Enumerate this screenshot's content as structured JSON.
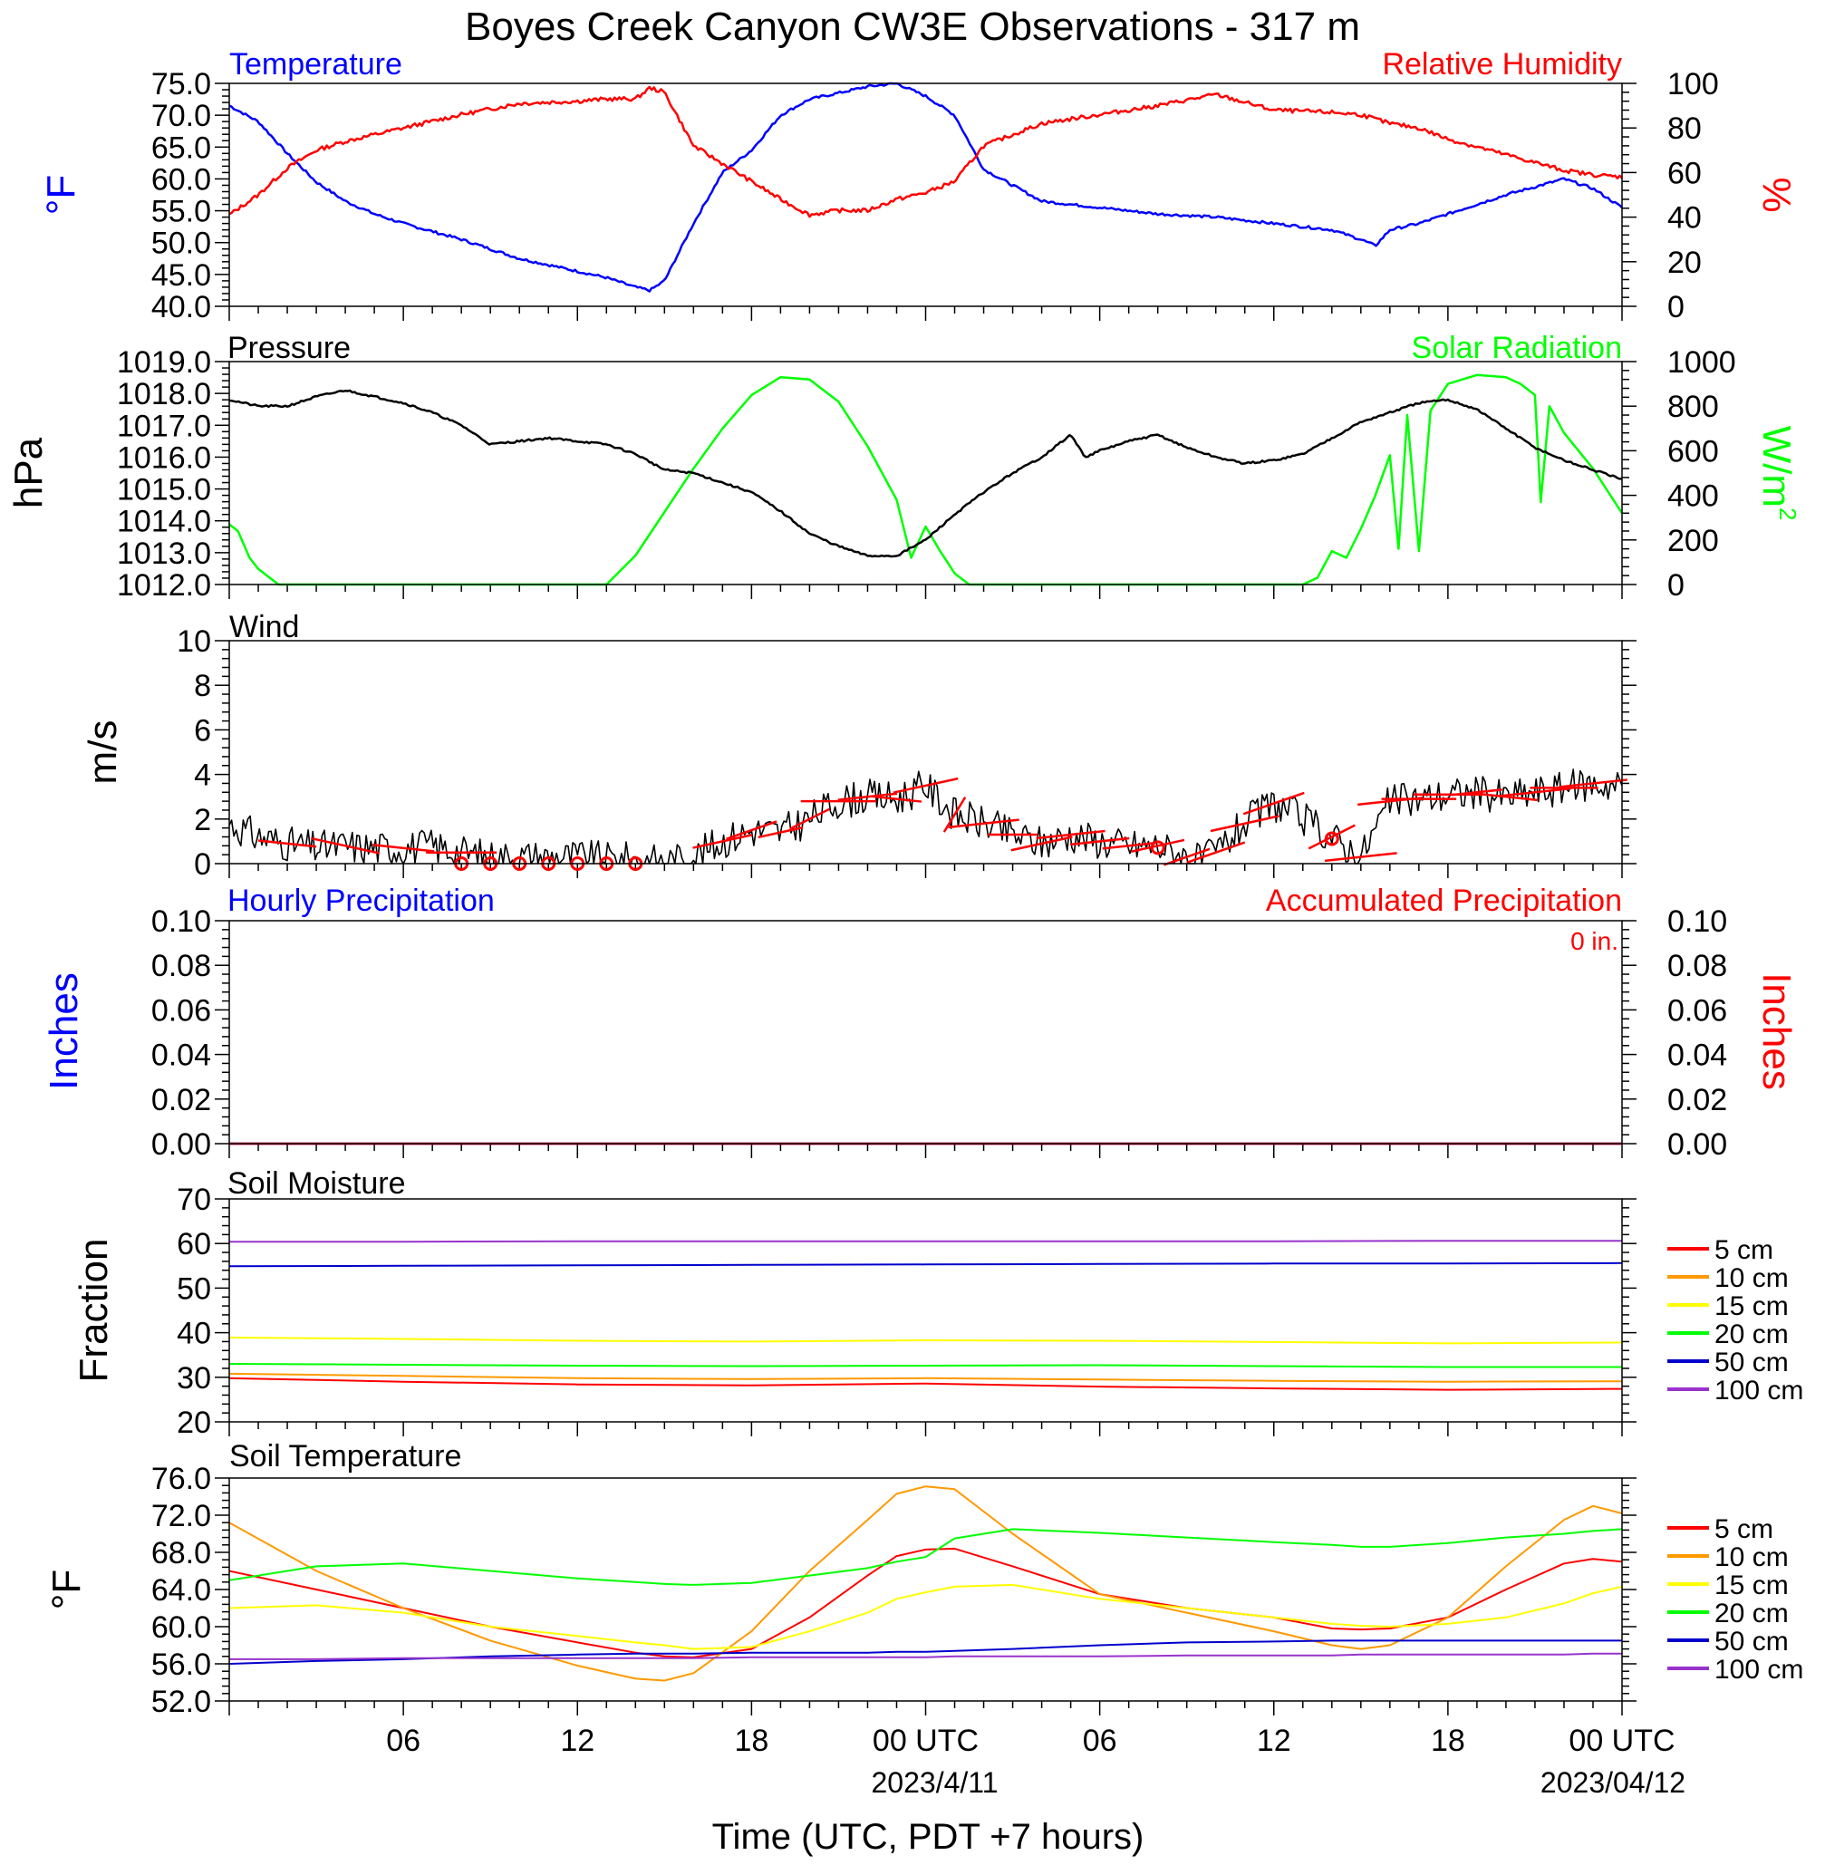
{
  "figure": {
    "title": "Boyes Creek Canyon CW3E Observations - 317 m",
    "xlabel": "Time (UTC, PDT +7 hours)",
    "xticks": [
      "06",
      "12",
      "18",
      "00 UTC",
      "06",
      "12",
      "18",
      "00 UTC"
    ],
    "xdates": [
      "2023/4/11",
      "2023/04/12"
    ],
    "colors": {
      "blue": "#0000ff",
      "red": "#ff0000",
      "green": "#00ff00",
      "black": "#000000",
      "orange": "#ff9900",
      "yellow": "#ffff00",
      "darkblue": "#0000cc",
      "purple": "#9933cc"
    }
  },
  "chart_data": [
    {
      "type": "line",
      "panel": "temperature-rh",
      "title_left": "Temperature",
      "title_right": "Relative Humidity",
      "ylabel_left": "°F",
      "ylabel_right": "%",
      "ylim_left": [
        40,
        75
      ],
      "ylim_right": [
        0,
        100
      ],
      "yticks_left": [
        "75.0",
        "70.0",
        "65.0",
        "60.0",
        "55.0",
        "50.0",
        "45.0",
        "40.0"
      ],
      "yticks_right": [
        "100",
        "80",
        "60",
        "40",
        "20",
        "0"
      ],
      "x_hours": [
        0,
        1,
        2,
        3,
        4,
        5,
        6,
        8,
        10,
        12,
        13,
        14,
        14.5,
        15,
        16,
        17,
        18,
        19,
        20,
        21,
        22,
        23,
        24,
        25,
        26,
        28,
        30,
        32,
        34,
        36,
        38,
        39,
        39.5,
        40,
        41,
        42,
        44,
        46,
        47,
        48
      ],
      "series": [
        {
          "name": "Temperature",
          "axis": "left",
          "color": "#0000ff",
          "values": [
            71.5,
            69,
            64,
            59.5,
            56.5,
            54.5,
            53,
            50.5,
            47.5,
            45.5,
            44.5,
            43,
            42.5,
            44,
            53,
            61,
            64.5,
            70,
            72.5,
            73.5,
            74.5,
            75,
            73,
            70,
            61.5,
            56.5,
            55.5,
            54.5,
            54,
            53,
            52,
            50.5,
            49.5,
            52,
            53,
            54.5,
            57.5,
            60,
            58.5,
            55.5
          ]
        },
        {
          "name": "Relative Humidity",
          "axis": "right",
          "color": "#ff0000",
          "values": [
            41,
            50,
            62,
            70,
            74,
            77,
            80,
            86,
            91,
            92,
            93,
            93,
            98,
            96,
            72,
            64,
            56,
            48,
            41,
            43,
            43,
            48,
            51,
            56,
            72,
            82,
            86,
            90,
            95,
            88,
            87,
            86,
            84,
            82,
            80,
            75,
            68,
            61,
            59,
            58
          ]
        }
      ]
    },
    {
      "type": "line",
      "panel": "pressure-solar",
      "title_left": "Pressure",
      "title_right": "Solar Radiation",
      "ylabel_left": "hPa",
      "ylabel_right": "W/m",
      "ylabel_right_sup": "2",
      "ylim_left": [
        1012,
        1019
      ],
      "ylim_right": [
        0,
        1000
      ],
      "yticks_left": [
        "1019.0",
        "1018.0",
        "1017.0",
        "1016.0",
        "1015.0",
        "1014.0",
        "1013.0",
        "1012.0"
      ],
      "yticks_right": [
        "1000",
        "800",
        "600",
        "400",
        "200",
        "0"
      ],
      "series": [
        {
          "name": "Pressure",
          "axis": "left",
          "color": "#000000",
          "x": [
            0,
            1,
            2,
            3,
            4,
            5,
            6,
            7,
            8,
            9,
            10,
            11,
            12,
            13,
            14,
            15,
            16,
            17,
            18,
            19,
            20,
            21,
            22,
            23,
            24,
            25,
            26,
            27,
            28,
            29,
            29.5,
            30,
            31,
            32,
            33,
            34,
            35,
            36,
            37,
            38,
            39,
            40,
            41,
            42,
            43,
            44,
            45,
            46,
            47,
            48
          ],
          "values": [
            1017.8,
            1017.6,
            1017.6,
            1017.9,
            1018.1,
            1017.9,
            1017.7,
            1017.4,
            1017.0,
            1016.4,
            1016.5,
            1016.6,
            1016.5,
            1016.4,
            1016.1,
            1015.6,
            1015.5,
            1015.2,
            1014.9,
            1014.3,
            1013.6,
            1013.2,
            1012.9,
            1012.9,
            1013.4,
            1014.2,
            1014.9,
            1015.5,
            1016.0,
            1016.7,
            1016.0,
            1016.2,
            1016.5,
            1016.7,
            1016.3,
            1016.0,
            1015.8,
            1015.9,
            1016.1,
            1016.6,
            1017.1,
            1017.4,
            1017.7,
            1017.8,
            1017.5,
            1016.9,
            1016.3,
            1015.9,
            1015.6,
            1015.3
          ]
        },
        {
          "name": "Solar Radiation",
          "axis": "right",
          "color": "#00ff00",
          "x": [
            0,
            0.3,
            0.7,
            1,
            1.7,
            13,
            14,
            16,
            17,
            18,
            19,
            20,
            21,
            22,
            23,
            23.5,
            24,
            24.5,
            25,
            25.5,
            26,
            37,
            37.5,
            38,
            38.5,
            39,
            39.5,
            40,
            40.3,
            40.6,
            41,
            41.4,
            42,
            43,
            44,
            44.5,
            45,
            45.2,
            45.5,
            46,
            47,
            48
          ],
          "values": [
            270,
            240,
            120,
            70,
            0,
            0,
            130,
            520,
            700,
            850,
            930,
            920,
            820,
            620,
            380,
            120,
            260,
            150,
            50,
            0,
            0,
            0,
            30,
            150,
            120,
            250,
            400,
            580,
            160,
            760,
            150,
            780,
            900,
            940,
            930,
            900,
            850,
            370,
            800,
            680,
            520,
            320
          ]
        }
      ]
    },
    {
      "type": "line",
      "panel": "wind",
      "title_left": "Wind",
      "ylabel_left": "m/s",
      "ylim_left": [
        0,
        10
      ],
      "yticks_left": [
        "10",
        "8",
        "6",
        "4",
        "2",
        "0"
      ],
      "series": [
        {
          "name": "Wind",
          "axis": "left",
          "color": "#000000",
          "x": [
            0,
            1,
            2,
            3,
            4,
            5,
            6,
            7,
            8,
            9,
            10,
            11,
            12,
            13,
            14,
            15,
            16,
            17,
            18,
            19,
            20,
            21,
            22,
            23,
            24,
            25,
            26,
            27,
            28,
            29,
            30,
            31,
            32,
            33,
            33.5,
            34,
            35,
            36,
            37,
            38,
            39,
            40,
            41,
            42,
            43,
            44,
            45,
            46,
            47,
            48
          ],
          "values": [
            1.8,
            1.2,
            0.9,
            0.7,
            0.8,
            0.7,
            0.7,
            0.8,
            0.5,
            0.3,
            0.3,
            0.3,
            0.3,
            0.2,
            0.2,
            0.1,
            0.3,
            1.0,
            1.5,
            1.4,
            2.0,
            2.8,
            3.0,
            2.9,
            3.5,
            2.2,
            1.8,
            1.3,
            0.9,
            1.3,
            1.0,
            0.8,
            0.8,
            0.3,
            0.1,
            0.5,
            1.8,
            2.7,
            2.0,
            1.2,
            0.3,
            2.8,
            2.9,
            3.1,
            3.2,
            3.0,
            3.2,
            3.4,
            3.6,
            3.5
          ]
        }
      ],
      "barb_hours": [
        2,
        4,
        6,
        8,
        17,
        18,
        19,
        20,
        21,
        22,
        23,
        24,
        25,
        26,
        27,
        28,
        29,
        30,
        31,
        32,
        33,
        34,
        35,
        36,
        38,
        39,
        40,
        41,
        42,
        43,
        44,
        45,
        46,
        47
      ],
      "barb_dir_deg": [
        280,
        290,
        280,
        270,
        250,
        240,
        250,
        230,
        270,
        260,
        280,
        250,
        200,
        260,
        270,
        250,
        260,
        260,
        260,
        250,
        240,
        240,
        250,
        240,
        230,
        260,
        260,
        270,
        270,
        260,
        280,
        260,
        270,
        260
      ],
      "calm_hours": [
        8,
        9,
        10,
        11,
        12,
        13,
        14,
        32,
        38
      ]
    },
    {
      "type": "line",
      "panel": "precipitation",
      "title_left": "Hourly Precipitation",
      "title_right": "Accumulated Precipitation",
      "note_right": "0 in.",
      "ylabel_left": "Inches",
      "ylabel_right": "Inches",
      "ylim_left": [
        0,
        0.1
      ],
      "ylim_right": [
        0,
        0.1
      ],
      "yticks_left": [
        "0.10",
        "0.08",
        "0.06",
        "0.04",
        "0.02",
        "0.00"
      ],
      "yticks_right": [
        "0.10",
        "0.08",
        "0.06",
        "0.04",
        "0.02",
        "0.00"
      ],
      "series": [
        {
          "name": "Hourly Precipitation",
          "axis": "left",
          "color": "#0000ff",
          "x": [
            0,
            48
          ],
          "values": [
            0,
            0
          ]
        },
        {
          "name": "Accumulated Precipitation",
          "axis": "right",
          "color": "#ff0000",
          "x": [
            0,
            48
          ],
          "values": [
            0,
            0
          ]
        }
      ]
    },
    {
      "type": "line",
      "panel": "soil-moisture",
      "title_left": "Soil Moisture",
      "ylabel_left": "Fraction",
      "ylim_left": [
        20,
        70
      ],
      "yticks_left": [
        "70",
        "60",
        "50",
        "40",
        "30",
        "20"
      ],
      "x_hours": [
        0,
        6,
        12,
        18,
        24,
        30,
        36,
        42,
        48
      ],
      "series": [
        {
          "name": "5 cm",
          "color": "#ff0000",
          "values": [
            29.8,
            29.0,
            28.4,
            28.2,
            28.6,
            27.9,
            27.5,
            27.2,
            27.4
          ]
        },
        {
          "name": "10 cm",
          "color": "#ff9900",
          "values": [
            30.8,
            30.3,
            29.8,
            29.6,
            29.8,
            29.5,
            29.2,
            29.0,
            29.1
          ]
        },
        {
          "name": "15 cm",
          "color": "#ffff00",
          "values": [
            38.9,
            38.6,
            38.2,
            38.0,
            38.3,
            38.2,
            37.9,
            37.6,
            37.8
          ]
        },
        {
          "name": "20 cm",
          "color": "#00ff00",
          "values": [
            33.0,
            32.8,
            32.6,
            32.5,
            32.6,
            32.7,
            32.5,
            32.3,
            32.3
          ]
        },
        {
          "name": "50 cm",
          "color": "#0000cc",
          "values": [
            54.9,
            55.0,
            55.1,
            55.2,
            55.3,
            55.4,
            55.5,
            55.5,
            55.6
          ]
        },
        {
          "name": "100 cm",
          "color": "#9933cc",
          "values": [
            60.4,
            60.4,
            60.5,
            60.5,
            60.5,
            60.5,
            60.5,
            60.6,
            60.6
          ]
        }
      ]
    },
    {
      "type": "line",
      "panel": "soil-temperature",
      "title_left": "Soil Temperature",
      "ylabel_left": "°F",
      "ylim_left": [
        52,
        76
      ],
      "yticks_left": [
        "76.0",
        "72.0",
        "68.0",
        "64.0",
        "60.0",
        "56.0",
        "52.0"
      ],
      "x_hours": [
        0,
        3,
        6,
        9,
        12,
        14,
        15,
        16,
        18,
        20,
        22,
        23,
        24,
        25,
        27,
        30,
        33,
        36,
        38,
        39,
        40,
        42,
        44,
        46,
        47,
        48
      ],
      "series": [
        {
          "name": "5 cm",
          "color": "#ff0000",
          "values": [
            66.0,
            64.0,
            62.0,
            60.0,
            58.3,
            57.2,
            56.8,
            56.7,
            57.6,
            61.0,
            65.5,
            67.6,
            68.3,
            68.4,
            66.5,
            63.5,
            62.0,
            61.0,
            59.8,
            59.7,
            59.8,
            61.0,
            64.0,
            66.8,
            67.3,
            67.0
          ]
        },
        {
          "name": "10 cm",
          "color": "#ff9900",
          "values": [
            71.2,
            66.0,
            62.0,
            58.5,
            55.8,
            54.4,
            54.2,
            55.0,
            59.5,
            66.0,
            71.5,
            74.3,
            75.1,
            74.8,
            70.0,
            63.5,
            61.5,
            59.5,
            58.0,
            57.6,
            58.0,
            61.0,
            66.5,
            71.5,
            73.0,
            72.2
          ]
        },
        {
          "name": "15 cm",
          "color": "#ffff00",
          "values": [
            62.0,
            62.3,
            61.5,
            60.0,
            59.0,
            58.3,
            58.0,
            57.6,
            57.8,
            59.5,
            61.5,
            63.0,
            63.7,
            64.3,
            64.5,
            63.0,
            62.0,
            61.0,
            60.3,
            60.1,
            60.0,
            60.3,
            61.0,
            62.5,
            63.6,
            64.3
          ]
        },
        {
          "name": "20 cm",
          "color": "#00ff00",
          "values": [
            65.0,
            66.5,
            66.8,
            66.0,
            65.2,
            64.8,
            64.6,
            64.5,
            64.7,
            65.5,
            66.3,
            67.0,
            67.5,
            69.5,
            70.5,
            70.1,
            69.6,
            69.1,
            68.8,
            68.6,
            68.6,
            69.0,
            69.6,
            70.0,
            70.3,
            70.5
          ]
        },
        {
          "name": "50 cm",
          "color": "#0000cc",
          "values": [
            56.0,
            56.3,
            56.5,
            56.8,
            57.0,
            57.1,
            57.1,
            57.1,
            57.2,
            57.2,
            57.2,
            57.3,
            57.3,
            57.4,
            57.6,
            58.0,
            58.3,
            58.4,
            58.5,
            58.5,
            58.5,
            58.5,
            58.5,
            58.5,
            58.5,
            58.5
          ]
        },
        {
          "name": "100 cm",
          "color": "#9933cc",
          "values": [
            56.5,
            56.5,
            56.6,
            56.6,
            56.6,
            56.6,
            56.6,
            56.6,
            56.7,
            56.7,
            56.7,
            56.7,
            56.7,
            56.8,
            56.8,
            56.8,
            56.9,
            56.9,
            56.9,
            57.0,
            57.0,
            57.0,
            57.0,
            57.0,
            57.1,
            57.1
          ]
        }
      ]
    }
  ]
}
